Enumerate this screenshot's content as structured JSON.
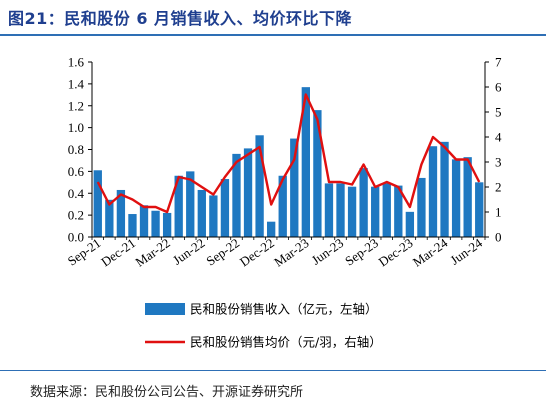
{
  "header": {
    "title": "图21：民和股份 6 月销售收入、均价环比下降"
  },
  "footer": {
    "source": "数据来源：民和股份公司公告、开源证券研究所"
  },
  "colors": {
    "bar": "#1f78c1",
    "line": "#e01010",
    "accent": "#1f3f8f"
  },
  "chart_data": {
    "type": "bar",
    "x": [
      "2021-09",
      "2021-10",
      "2021-11",
      "2021-12",
      "2022-01",
      "2022-02",
      "2022-03",
      "2022-04",
      "2022-05",
      "2022-06",
      "2022-07",
      "2022-08",
      "2022-09",
      "2022-10",
      "2022-11",
      "2022-12",
      "2023-01",
      "2023-02",
      "2023-03",
      "2023-04",
      "2023-05",
      "2023-06",
      "2023-07",
      "2023-08",
      "2023-09",
      "2023-10",
      "2023-11",
      "2023-12",
      "2024-01",
      "2024-02",
      "2024-03",
      "2024-04",
      "2024-05",
      "2024-06"
    ],
    "x_tick_labels": [
      "Sep-21",
      "Dec-21",
      "Mar-22",
      "Jun-22",
      "Sep-22",
      "Dec-22",
      "Mar-23",
      "Jun-23",
      "Sep-23",
      "Dec-23",
      "Mar-24",
      "Jun-24"
    ],
    "x_tick_index": [
      0,
      3,
      6,
      9,
      12,
      15,
      18,
      21,
      24,
      27,
      30,
      33
    ],
    "series": [
      {
        "name": "民和股份销售收入（亿元，左轴）",
        "type": "bar",
        "axis": "left",
        "values": [
          0.61,
          0.34,
          0.43,
          0.21,
          0.29,
          0.24,
          0.22,
          0.56,
          0.6,
          0.43,
          0.38,
          0.53,
          0.76,
          0.81,
          0.93,
          0.14,
          0.56,
          0.9,
          1.37,
          1.16,
          0.49,
          0.49,
          0.46,
          0.63,
          0.46,
          0.49,
          0.47,
          0.23,
          0.54,
          0.83,
          0.87,
          0.71,
          0.73,
          0.5
        ]
      },
      {
        "name": "民和股份销售均价（元/羽，右轴）",
        "type": "line",
        "axis": "right",
        "values": [
          2.2,
          1.3,
          1.7,
          1.5,
          1.2,
          1.2,
          1.0,
          2.4,
          2.3,
          2.0,
          1.7,
          2.4,
          3.0,
          3.3,
          3.6,
          1.3,
          2.3,
          3.1,
          5.7,
          4.7,
          2.2,
          2.2,
          2.1,
          2.9,
          2.0,
          2.2,
          2.0,
          1.2,
          2.9,
          4.0,
          3.6,
          3.1,
          3.1,
          2.2
        ]
      }
    ],
    "y_left": {
      "ylim": [
        0,
        1.6
      ],
      "ticks": [
        "0.0",
        "0.2",
        "0.4",
        "0.6",
        "0.8",
        "1.0",
        "1.2",
        "1.4",
        "1.6"
      ]
    },
    "y_right": {
      "ylim": [
        0,
        7
      ],
      "ticks": [
        "0",
        "1",
        "2",
        "3",
        "4",
        "5",
        "6",
        "7"
      ]
    },
    "grid": false,
    "legend_position": "bottom"
  }
}
